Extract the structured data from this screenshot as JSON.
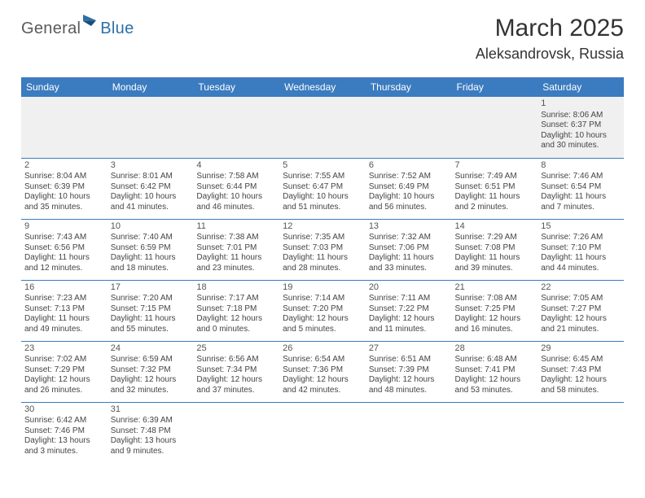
{
  "logo": {
    "part1": "General",
    "part2": "Blue"
  },
  "title": "March 2025",
  "location": "Aleksandrovsk, Russia",
  "colors": {
    "header_bg": "#3b7bbf",
    "header_text": "#ffffff",
    "cell_border": "#3b7bbf",
    "page_bg": "#ffffff",
    "text": "#444444",
    "logo_blue": "#2f6fa8",
    "logo_gray": "#5a5a5a",
    "first_row_bg": "#f0f0f0"
  },
  "weekdays": [
    "Sunday",
    "Monday",
    "Tuesday",
    "Wednesday",
    "Thursday",
    "Friday",
    "Saturday"
  ],
  "weeks": [
    [
      null,
      null,
      null,
      null,
      null,
      null,
      {
        "n": "1",
        "sr": "Sunrise: 8:06 AM",
        "ss": "Sunset: 6:37 PM",
        "dl": "Daylight: 10 hours and 30 minutes."
      }
    ],
    [
      {
        "n": "2",
        "sr": "Sunrise: 8:04 AM",
        "ss": "Sunset: 6:39 PM",
        "dl": "Daylight: 10 hours and 35 minutes."
      },
      {
        "n": "3",
        "sr": "Sunrise: 8:01 AM",
        "ss": "Sunset: 6:42 PM",
        "dl": "Daylight: 10 hours and 41 minutes."
      },
      {
        "n": "4",
        "sr": "Sunrise: 7:58 AM",
        "ss": "Sunset: 6:44 PM",
        "dl": "Daylight: 10 hours and 46 minutes."
      },
      {
        "n": "5",
        "sr": "Sunrise: 7:55 AM",
        "ss": "Sunset: 6:47 PM",
        "dl": "Daylight: 10 hours and 51 minutes."
      },
      {
        "n": "6",
        "sr": "Sunrise: 7:52 AM",
        "ss": "Sunset: 6:49 PM",
        "dl": "Daylight: 10 hours and 56 minutes."
      },
      {
        "n": "7",
        "sr": "Sunrise: 7:49 AM",
        "ss": "Sunset: 6:51 PM",
        "dl": "Daylight: 11 hours and 2 minutes."
      },
      {
        "n": "8",
        "sr": "Sunrise: 7:46 AM",
        "ss": "Sunset: 6:54 PM",
        "dl": "Daylight: 11 hours and 7 minutes."
      }
    ],
    [
      {
        "n": "9",
        "sr": "Sunrise: 7:43 AM",
        "ss": "Sunset: 6:56 PM",
        "dl": "Daylight: 11 hours and 12 minutes."
      },
      {
        "n": "10",
        "sr": "Sunrise: 7:40 AM",
        "ss": "Sunset: 6:59 PM",
        "dl": "Daylight: 11 hours and 18 minutes."
      },
      {
        "n": "11",
        "sr": "Sunrise: 7:38 AM",
        "ss": "Sunset: 7:01 PM",
        "dl": "Daylight: 11 hours and 23 minutes."
      },
      {
        "n": "12",
        "sr": "Sunrise: 7:35 AM",
        "ss": "Sunset: 7:03 PM",
        "dl": "Daylight: 11 hours and 28 minutes."
      },
      {
        "n": "13",
        "sr": "Sunrise: 7:32 AM",
        "ss": "Sunset: 7:06 PM",
        "dl": "Daylight: 11 hours and 33 minutes."
      },
      {
        "n": "14",
        "sr": "Sunrise: 7:29 AM",
        "ss": "Sunset: 7:08 PM",
        "dl": "Daylight: 11 hours and 39 minutes."
      },
      {
        "n": "15",
        "sr": "Sunrise: 7:26 AM",
        "ss": "Sunset: 7:10 PM",
        "dl": "Daylight: 11 hours and 44 minutes."
      }
    ],
    [
      {
        "n": "16",
        "sr": "Sunrise: 7:23 AM",
        "ss": "Sunset: 7:13 PM",
        "dl": "Daylight: 11 hours and 49 minutes."
      },
      {
        "n": "17",
        "sr": "Sunrise: 7:20 AM",
        "ss": "Sunset: 7:15 PM",
        "dl": "Daylight: 11 hours and 55 minutes."
      },
      {
        "n": "18",
        "sr": "Sunrise: 7:17 AM",
        "ss": "Sunset: 7:18 PM",
        "dl": "Daylight: 12 hours and 0 minutes."
      },
      {
        "n": "19",
        "sr": "Sunrise: 7:14 AM",
        "ss": "Sunset: 7:20 PM",
        "dl": "Daylight: 12 hours and 5 minutes."
      },
      {
        "n": "20",
        "sr": "Sunrise: 7:11 AM",
        "ss": "Sunset: 7:22 PM",
        "dl": "Daylight: 12 hours and 11 minutes."
      },
      {
        "n": "21",
        "sr": "Sunrise: 7:08 AM",
        "ss": "Sunset: 7:25 PM",
        "dl": "Daylight: 12 hours and 16 minutes."
      },
      {
        "n": "22",
        "sr": "Sunrise: 7:05 AM",
        "ss": "Sunset: 7:27 PM",
        "dl": "Daylight: 12 hours and 21 minutes."
      }
    ],
    [
      {
        "n": "23",
        "sr": "Sunrise: 7:02 AM",
        "ss": "Sunset: 7:29 PM",
        "dl": "Daylight: 12 hours and 26 minutes."
      },
      {
        "n": "24",
        "sr": "Sunrise: 6:59 AM",
        "ss": "Sunset: 7:32 PM",
        "dl": "Daylight: 12 hours and 32 minutes."
      },
      {
        "n": "25",
        "sr": "Sunrise: 6:56 AM",
        "ss": "Sunset: 7:34 PM",
        "dl": "Daylight: 12 hours and 37 minutes."
      },
      {
        "n": "26",
        "sr": "Sunrise: 6:54 AM",
        "ss": "Sunset: 7:36 PM",
        "dl": "Daylight: 12 hours and 42 minutes."
      },
      {
        "n": "27",
        "sr": "Sunrise: 6:51 AM",
        "ss": "Sunset: 7:39 PM",
        "dl": "Daylight: 12 hours and 48 minutes."
      },
      {
        "n": "28",
        "sr": "Sunrise: 6:48 AM",
        "ss": "Sunset: 7:41 PM",
        "dl": "Daylight: 12 hours and 53 minutes."
      },
      {
        "n": "29",
        "sr": "Sunrise: 6:45 AM",
        "ss": "Sunset: 7:43 PM",
        "dl": "Daylight: 12 hours and 58 minutes."
      }
    ],
    [
      {
        "n": "30",
        "sr": "Sunrise: 6:42 AM",
        "ss": "Sunset: 7:46 PM",
        "dl": "Daylight: 13 hours and 3 minutes."
      },
      {
        "n": "31",
        "sr": "Sunrise: 6:39 AM",
        "ss": "Sunset: 7:48 PM",
        "dl": "Daylight: 13 hours and 9 minutes."
      },
      null,
      null,
      null,
      null,
      null
    ]
  ]
}
